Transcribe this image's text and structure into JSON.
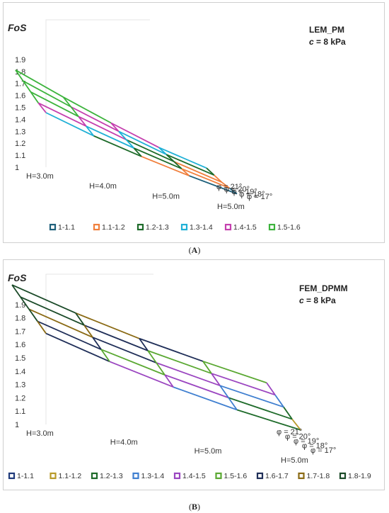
{
  "chart_data": [
    {
      "type": "surface",
      "id": "A",
      "caption": "A",
      "yaxis_title": "FoS",
      "method": "LEM_PM",
      "cohesion": "c = 8 kPa",
      "z_ticks": [
        "1",
        "1.1",
        "1.2",
        "1.3",
        "1.4",
        "1.5",
        "1.6",
        "1.7",
        "1.8",
        "1.9"
      ],
      "zlim": [
        1,
        1.9
      ],
      "h_ticks": [
        "H=3.0m",
        "H=4.0m",
        "H=5.0m",
        "H=5.0m"
      ],
      "phi_ticks": [
        "φ = 17°",
        "φ = 18°",
        "φ = 19°",
        "φ = 20°",
        "φ = 21°"
      ],
      "h_values": [
        3.0,
        3.5,
        4.0,
        4.5,
        5.0
      ],
      "phi_values": [
        17,
        18,
        19,
        20,
        21
      ],
      "fos": [
        [
          1.42,
          1.5,
          1.59,
          1.68,
          1.77
        ],
        [
          1.3,
          1.38,
          1.46,
          1.54,
          1.62
        ],
        [
          1.2,
          1.27,
          1.34,
          1.41,
          1.48
        ],
        [
          1.11,
          1.17,
          1.23,
          1.29,
          1.35
        ],
        [
          1.03,
          1.08,
          1.13,
          1.19,
          1.25
        ]
      ],
      "legend": [
        "1-1.1",
        "1.1-1.2",
        "1.2-1.3",
        "1.3-1.4",
        "1.4-1.5",
        "1.5-1.6"
      ],
      "legend_colors": [
        "#1d5f7a",
        "#f07f3c",
        "#1e6b2a",
        "#1fb0d6",
        "#c43fae",
        "#3cb33c"
      ]
    },
    {
      "type": "surface",
      "id": "B",
      "caption": "B",
      "yaxis_title": "FoS",
      "method": "FEM_DPMM",
      "cohesion": "c = 8 kPa",
      "z_ticks": [
        "1",
        "1.1",
        "1.2",
        "1.3",
        "1.4",
        "1.5",
        "1.6",
        "1.7",
        "1.8",
        "1.9"
      ],
      "zlim": [
        1,
        1.9
      ],
      "h_ticks": [
        "H=3.0m",
        "H=4.0m",
        "H=5.0m",
        "H=5.0m"
      ],
      "phi_ticks": [
        "φ = 17°",
        "φ = 18°",
        "φ = 19°",
        "φ = 20°",
        "φ = 21°"
      ],
      "h_values": [
        3.0,
        3.5,
        4.0,
        4.5,
        5.0
      ],
      "phi_values": [
        17,
        18,
        19,
        20,
        21
      ],
      "fos": [
        [
          1.68,
          1.76,
          1.84,
          1.92,
          2.0
        ],
        [
          1.52,
          1.6,
          1.68,
          1.76,
          1.84
        ],
        [
          1.38,
          1.46,
          1.54,
          1.62,
          1.7
        ],
        [
          1.26,
          1.34,
          1.42,
          1.5,
          1.58
        ],
        [
          1.16,
          1.23,
          1.31,
          1.39,
          1.47
        ]
      ],
      "legend": [
        "1-1.1",
        "1.1-1.2",
        "1.2-1.3",
        "1.3-1.4",
        "1.4-1.5",
        "1.5-1.6",
        "1.6-1.7",
        "1.7-1.8",
        "1.8-1.9"
      ],
      "legend_colors": [
        "#1f3a7a",
        "#b89a2a",
        "#1e6b2a",
        "#3f7fd0",
        "#9a45c0",
        "#5aa832",
        "#1f2e58",
        "#8a6a14",
        "#1a4a28"
      ]
    }
  ]
}
